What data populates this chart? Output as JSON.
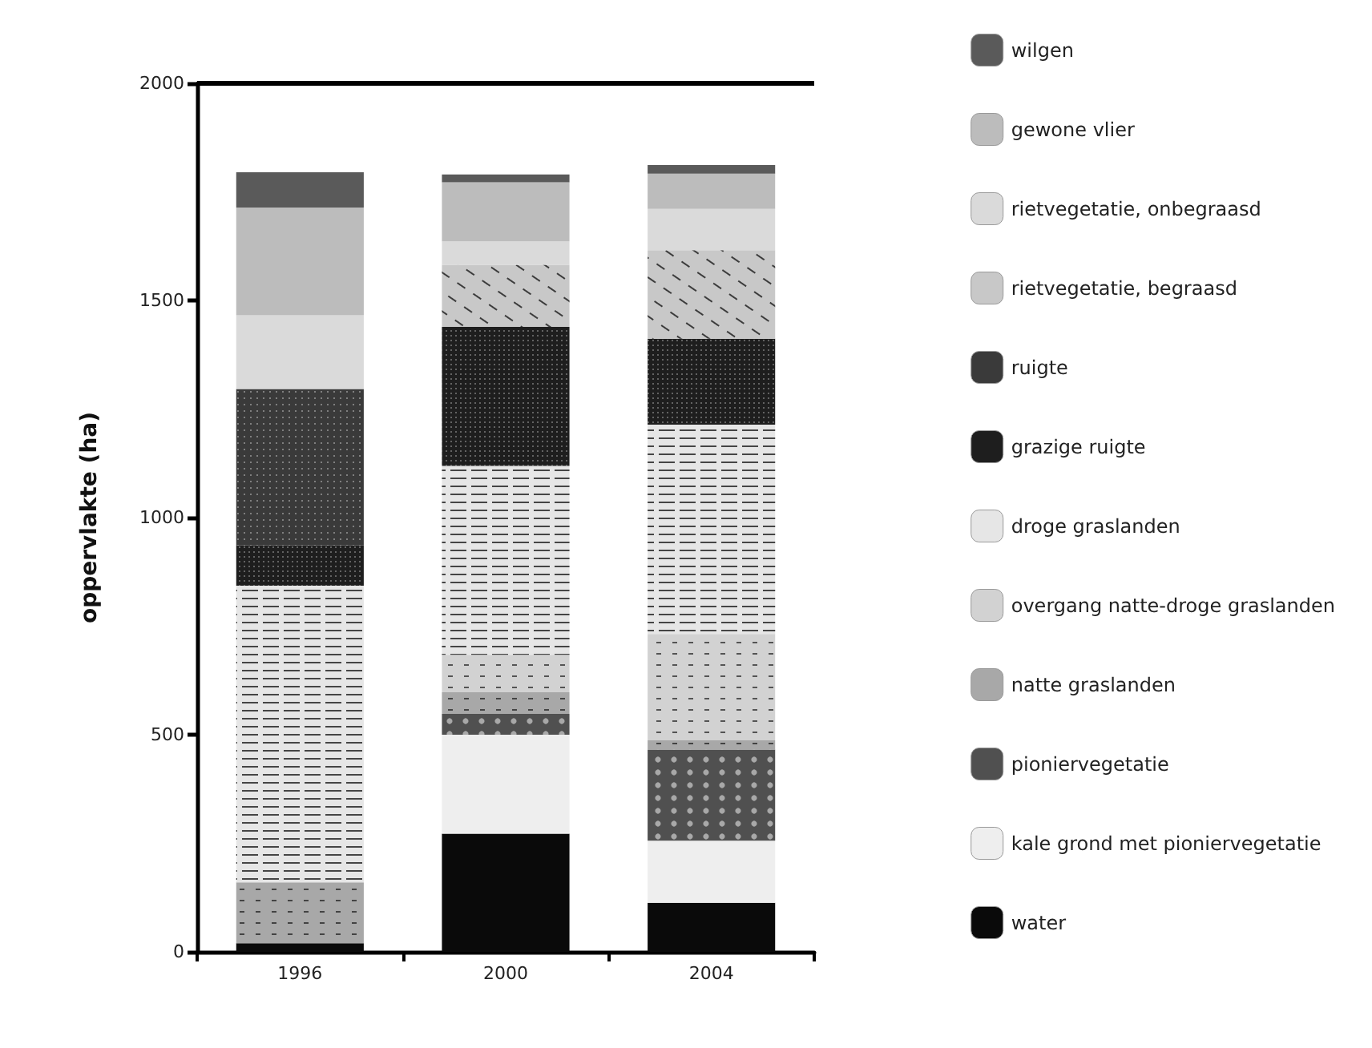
{
  "chart_data": {
    "type": "bar",
    "stacked": true,
    "ylabel": "oppervlakte (ha)",
    "categories": [
      "1996",
      "2000",
      "2004"
    ],
    "ylim": [
      0,
      2000
    ],
    "yticks": [
      0,
      500,
      1000,
      1500,
      2000
    ],
    "grid": false,
    "legend": "right",
    "series": [
      {
        "name": "water",
        "color": "#0a0a0a",
        "values": [
          20,
          272,
          113
        ]
      },
      {
        "name": "kale grond met pioniervegetatie",
        "color": "#eeeeee",
        "values": [
          0,
          228,
          143
        ]
      },
      {
        "name": "pioniervegetatie",
        "color": "#505050",
        "values": [
          0,
          48,
          210
        ]
      },
      {
        "name": "natte graslanden",
        "color": "#a8a8a8",
        "values": [
          140,
          50,
          21
        ]
      },
      {
        "name": "overgang natte-droge graslanden",
        "color": "#d2d2d2",
        "values": [
          0,
          86,
          245
        ]
      },
      {
        "name": "droge graslanden",
        "color": "#e6e6e6",
        "values": [
          683,
          435,
          482
        ]
      },
      {
        "name": "grazige ruigte",
        "color": "#1e1e1e",
        "values": [
          93,
          320,
          198
        ]
      },
      {
        "name": "ruigte",
        "color": "#3a3a3a",
        "values": [
          360,
          0,
          0
        ]
      },
      {
        "name": "rietvegetatie, begraasd",
        "color": "#c8c8c8",
        "values": [
          0,
          143,
          204
        ]
      },
      {
        "name": "rietvegetatie, onbegraasd",
        "color": "#dadada",
        "values": [
          170,
          54,
          95
        ]
      },
      {
        "name": "gewone vlier",
        "color": "#bcbcbc",
        "values": [
          248,
          136,
          81
        ]
      },
      {
        "name": "wilgen",
        "color": "#5a5a5a",
        "values": [
          81,
          18,
          20
        ]
      }
    ]
  }
}
